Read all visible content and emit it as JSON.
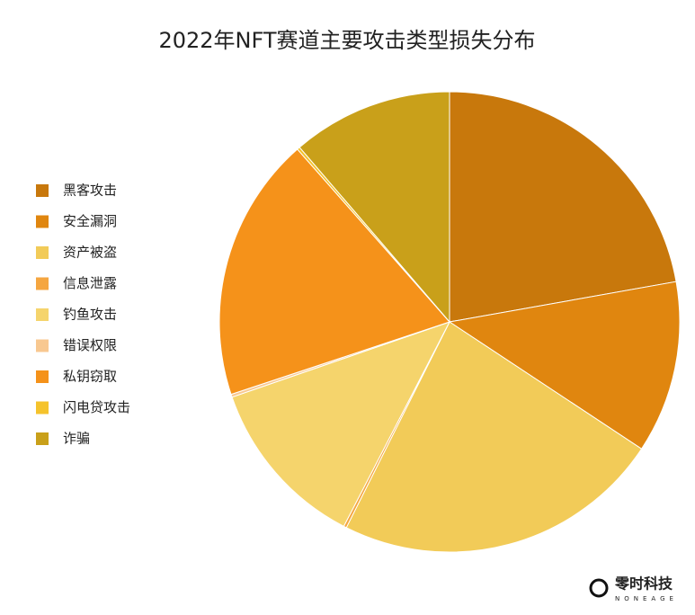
{
  "chart_data": {
    "type": "pie",
    "title": "2022年NFT赛道主要攻击类型损失分布",
    "categories": [
      "黑客攻击",
      "安全漏洞",
      "资产被盗",
      "信息泄露",
      "钓鱼攻击",
      "错误权限",
      "私钥窃取",
      "闪电贷攻击",
      "诈骗"
    ],
    "values": [
      22.2,
      12.1,
      23.1,
      0.2,
      12.1,
      0.2,
      18.6,
      0.2,
      11.3
    ],
    "colors": [
      "#c8780c",
      "#e0860f",
      "#f2cb58",
      "#f5a640",
      "#f5d46c",
      "#f8c890",
      "#f5921a",
      "#f5c32c",
      "#c9a01a"
    ],
    "legend": "left"
  },
  "watermark": {
    "name": "零时科技",
    "sub": "NONEAGE"
  }
}
